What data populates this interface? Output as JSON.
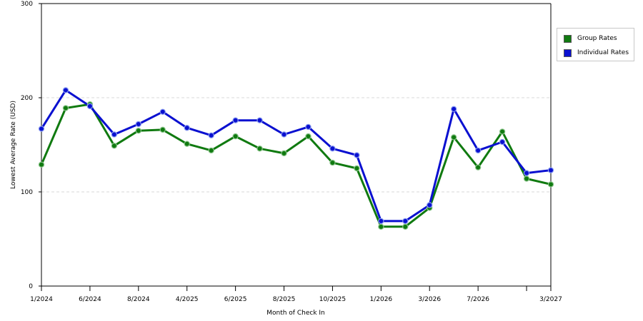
{
  "chart_data": {
    "type": "line",
    "title": "",
    "xlabel": "Month of Check In",
    "ylabel": "Lowest Average Rate (USD)",
    "ylim": [
      0,
      300
    ],
    "yticks": [
      "0",
      "100",
      "200",
      "300"
    ],
    "grid": true,
    "legend_position": "top-right",
    "x_tick_labels": [
      "1/2024",
      "",
      "6/2024",
      "",
      "8/2024",
      "",
      "4/2025",
      "",
      "6/2025",
      "",
      "8/2025",
      "",
      "10/2025",
      "",
      "1/2026",
      "",
      "3/2026",
      "",
      "7/2026",
      "",
      "",
      "3/2027"
    ],
    "series": [
      {
        "name": "Group Rates",
        "color": "#107a10",
        "values": [
          129,
          189,
          193,
          149,
          165,
          166,
          151,
          144,
          159,
          146,
          141,
          159,
          131,
          125,
          63,
          63,
          83,
          158,
          126,
          164,
          114,
          108
        ]
      },
      {
        "name": "Individual Rates",
        "color": "#0a10d0",
        "values": [
          167,
          208,
          191,
          161,
          172,
          185,
          168,
          160,
          176,
          176,
          161,
          169,
          146,
          139,
          69,
          69,
          86,
          188,
          144,
          153,
          120,
          123
        ]
      }
    ]
  }
}
